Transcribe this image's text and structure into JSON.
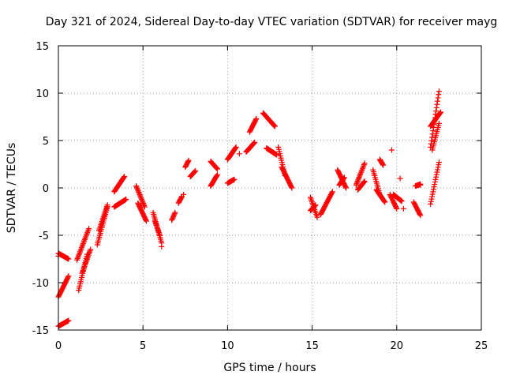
{
  "chart_data": {
    "type": "scatter",
    "title": "Day 321 of 2024, Sidereal Day-to-day VTEC variation (SDTVAR) for receiver mayg",
    "xlabel": "GPS time / hours",
    "ylabel": "SDTVAR / TECUs",
    "xlim": [
      0,
      25
    ],
    "ylim": [
      -15,
      15
    ],
    "xticks": [
      0,
      5,
      10,
      15,
      20,
      25
    ],
    "yticks": [
      -15,
      -10,
      -5,
      0,
      5,
      10,
      15
    ],
    "grid": true,
    "marker": "+",
    "color": "#ff0000",
    "segments": [
      {
        "t0": 0.0,
        "t1": 0.6,
        "v0": -6.9,
        "v1": -7.5
      },
      {
        "t0": 0.0,
        "t1": 0.6,
        "v0": -11.5,
        "v1": -9.3
      },
      {
        "t0": 0.0,
        "t1": 0.6,
        "v0": -14.6,
        "v1": -14.0
      },
      {
        "t0": 1.1,
        "t1": 1.8,
        "v0": -7.6,
        "v1": -4.3
      },
      {
        "t0": 1.2,
        "t1": 1.7,
        "v0": -10.8,
        "v1": -7.0
      },
      {
        "t0": 1.4,
        "t1": 1.9,
        "v0": -9.0,
        "v1": -6.5
      },
      {
        "t0": 2.3,
        "t1": 2.9,
        "v0": -6.0,
        "v1": -2.0
      },
      {
        "t0": 2.4,
        "t1": 2.9,
        "v0": -4.5,
        "v1": -1.8
      },
      {
        "t0": 3.3,
        "t1": 3.9,
        "v0": -0.4,
        "v1": 1.2
      },
      {
        "t0": 3.3,
        "t1": 4.0,
        "v0": -2.0,
        "v1": -1.2
      },
      {
        "t0": 4.6,
        "t1": 5.1,
        "v0": 0.2,
        "v1": -2.0
      },
      {
        "t0": 4.7,
        "t1": 5.2,
        "v0": -1.6,
        "v1": -3.5
      },
      {
        "t0": 5.6,
        "t1": 6.1,
        "v0": -2.6,
        "v1": -5.8
      },
      {
        "t0": 5.7,
        "t1": 6.0,
        "v0": -3.5,
        "v1": -5.0
      },
      {
        "t0": 6.7,
        "t1": 6.9,
        "v0": -3.4,
        "v1": -2.6
      },
      {
        "t0": 7.1,
        "t1": 7.3,
        "v0": -1.6,
        "v1": -0.9
      },
      {
        "t0": 7.5,
        "t1": 7.7,
        "v0": 2.2,
        "v1": 2.9
      },
      {
        "t0": 7.8,
        "t1": 8.1,
        "v0": 1.2,
        "v1": 1.8
      },
      {
        "t0": 9.0,
        "t1": 9.4,
        "v0": 0.2,
        "v1": 1.4
      },
      {
        "t0": 9.0,
        "t1": 9.4,
        "v0": 2.8,
        "v1": 2.0
      },
      {
        "t0": 10.0,
        "t1": 10.5,
        "v0": 3.0,
        "v1": 4.3
      },
      {
        "t0": 10.0,
        "t1": 10.4,
        "v0": 0.5,
        "v1": 0.9
      },
      {
        "t0": 11.1,
        "t1": 11.6,
        "v0": 3.8,
        "v1": 4.8
      },
      {
        "t0": 11.3,
        "t1": 11.7,
        "v0": 5.9,
        "v1": 7.3
      },
      {
        "t0": 12.1,
        "t1": 12.8,
        "v0": 7.9,
        "v1": 6.5
      },
      {
        "t0": 12.3,
        "t1": 12.9,
        "v0": 4.2,
        "v1": 3.5
      },
      {
        "t0": 13.0,
        "t1": 13.4,
        "v0": 4.3,
        "v1": 1.3
      },
      {
        "t0": 13.2,
        "t1": 13.8,
        "v0": 2.2,
        "v1": 0.0
      },
      {
        "t0": 14.9,
        "t1": 15.3,
        "v0": -1.0,
        "v1": -3.1
      },
      {
        "t0": 14.9,
        "t1": 15.2,
        "v0": -2.4,
        "v1": -1.8
      },
      {
        "t0": 15.5,
        "t1": 16.2,
        "v0": -2.8,
        "v1": -0.4
      },
      {
        "t0": 16.5,
        "t1": 17.0,
        "v0": 1.9,
        "v1": 0.0
      },
      {
        "t0": 16.6,
        "t1": 16.9,
        "v0": 0.3,
        "v1": 1.1
      },
      {
        "t0": 17.6,
        "t1": 18.1,
        "v0": 0.3,
        "v1": 2.6
      },
      {
        "t0": 17.7,
        "t1": 18.1,
        "v0": -0.2,
        "v1": 0.7
      },
      {
        "t0": 18.6,
        "t1": 19.0,
        "v0": 1.9,
        "v1": -0.7
      },
      {
        "t0": 18.8,
        "t1": 19.3,
        "v0": -0.2,
        "v1": -1.5
      },
      {
        "t0": 19.0,
        "t1": 19.2,
        "v0": 3.0,
        "v1": 2.4
      },
      {
        "t0": 19.6,
        "t1": 20.0,
        "v0": -0.7,
        "v1": -2.2
      },
      {
        "t0": 19.8,
        "t1": 20.3,
        "v0": -0.7,
        "v1": -1.4
      },
      {
        "t0": 21.0,
        "t1": 21.4,
        "v0": -1.5,
        "v1": -2.9
      },
      {
        "t0": 21.1,
        "t1": 21.4,
        "v0": 0.2,
        "v1": 0.4
      },
      {
        "t0": 22.0,
        "t1": 22.5,
        "v0": 4.3,
        "v1": 10.2
      },
      {
        "t0": 22.0,
        "t1": 22.6,
        "v0": 6.5,
        "v1": 8.0
      },
      {
        "t0": 22.1,
        "t1": 22.5,
        "v0": 4.0,
        "v1": 6.8
      },
      {
        "t0": 22.0,
        "t1": 22.5,
        "v0": -1.7,
        "v1": 2.7
      }
    ],
    "points": [
      {
        "x": 0.0,
        "y": -7.2
      },
      {
        "x": 19.7,
        "y": 4.0
      },
      {
        "x": 20.2,
        "y": 1.0
      },
      {
        "x": 20.4,
        "y": -2.2
      },
      {
        "x": 21.4,
        "y": 0.3
      },
      {
        "x": 6.1,
        "y": -6.2
      },
      {
        "x": 7.4,
        "y": -0.7
      },
      {
        "x": 10.7,
        "y": 3.6
      }
    ]
  }
}
